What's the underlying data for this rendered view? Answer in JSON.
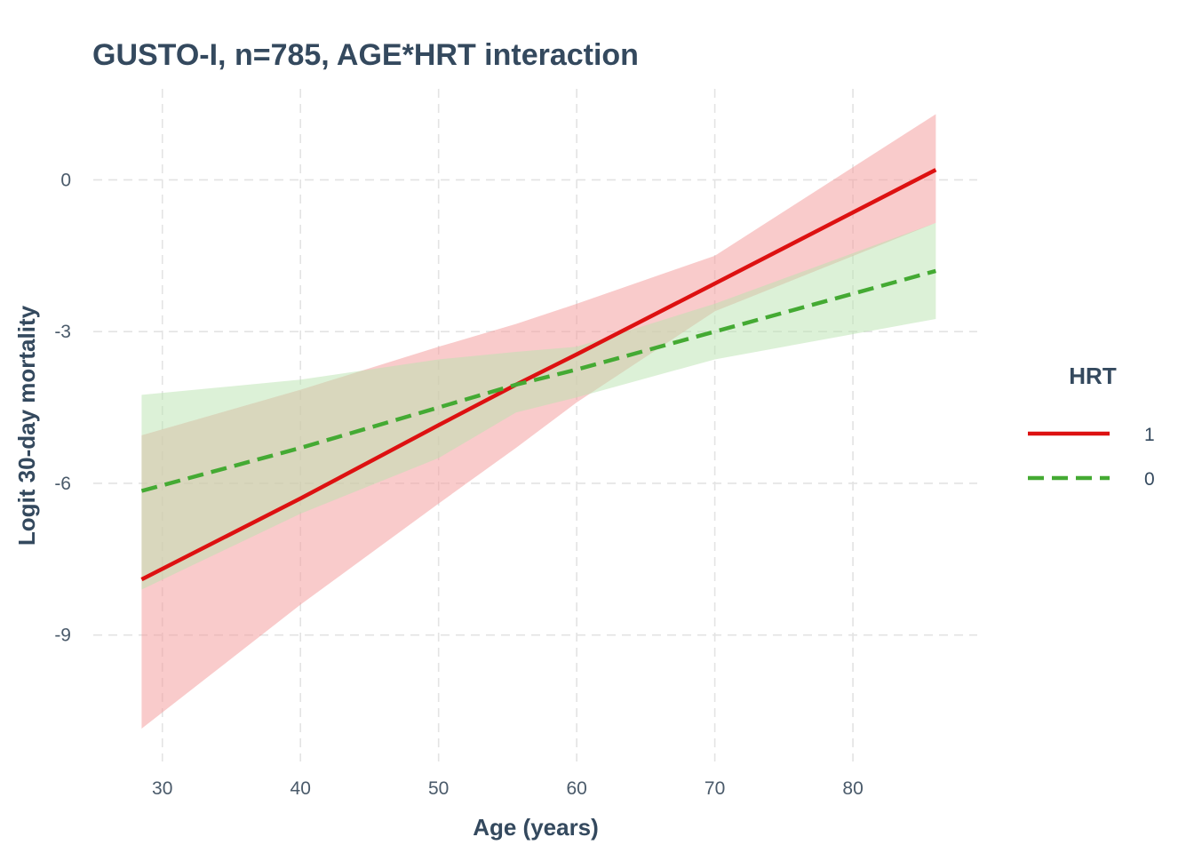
{
  "chart_data": {
    "type": "line",
    "title": "GUSTO-I, n=785, AGE*HRT interaction",
    "xlabel": "Age (years)",
    "ylabel": "Logit 30-day mortality",
    "xlim": [
      25,
      89
    ],
    "ylim": [
      -11.5,
      1.8
    ],
    "xticks": [
      30,
      40,
      50,
      60,
      70,
      80
    ],
    "yticks": [
      0,
      -3,
      -6,
      -9
    ],
    "grid": true,
    "legend": {
      "title": "HRT",
      "position": "right"
    },
    "series": [
      {
        "name": "1",
        "line": "solid",
        "color": "#dd1111",
        "band_color": "#f4a0a0",
        "x": [
          28.5,
          40,
          50,
          55.6,
          60,
          70,
          86
        ],
        "y": [
          -7.9,
          -6.3,
          -4.85,
          -4.05,
          -3.45,
          -2.05,
          0.2
        ],
        "lower": [
          -10.85,
          -8.4,
          -6.4,
          -5.3,
          -4.4,
          -2.6,
          -0.85
        ],
        "upper": [
          -5.05,
          -4.15,
          -3.3,
          -2.85,
          -2.45,
          -1.5,
          1.3
        ]
      },
      {
        "name": "0",
        "line": "dashed",
        "color": "#44aa33",
        "band_color": "#b9e3b0",
        "x": [
          28.5,
          40,
          50,
          55.6,
          60,
          70,
          86
        ],
        "y": [
          -6.15,
          -5.3,
          -4.5,
          -4.05,
          -3.75,
          -3.0,
          -1.8
        ],
        "lower": [
          -8.1,
          -6.6,
          -5.5,
          -4.6,
          -4.3,
          -3.55,
          -2.75
        ],
        "upper": [
          -4.25,
          -3.95,
          -3.55,
          -3.4,
          -3.3,
          -2.45,
          -0.85
        ]
      }
    ]
  }
}
